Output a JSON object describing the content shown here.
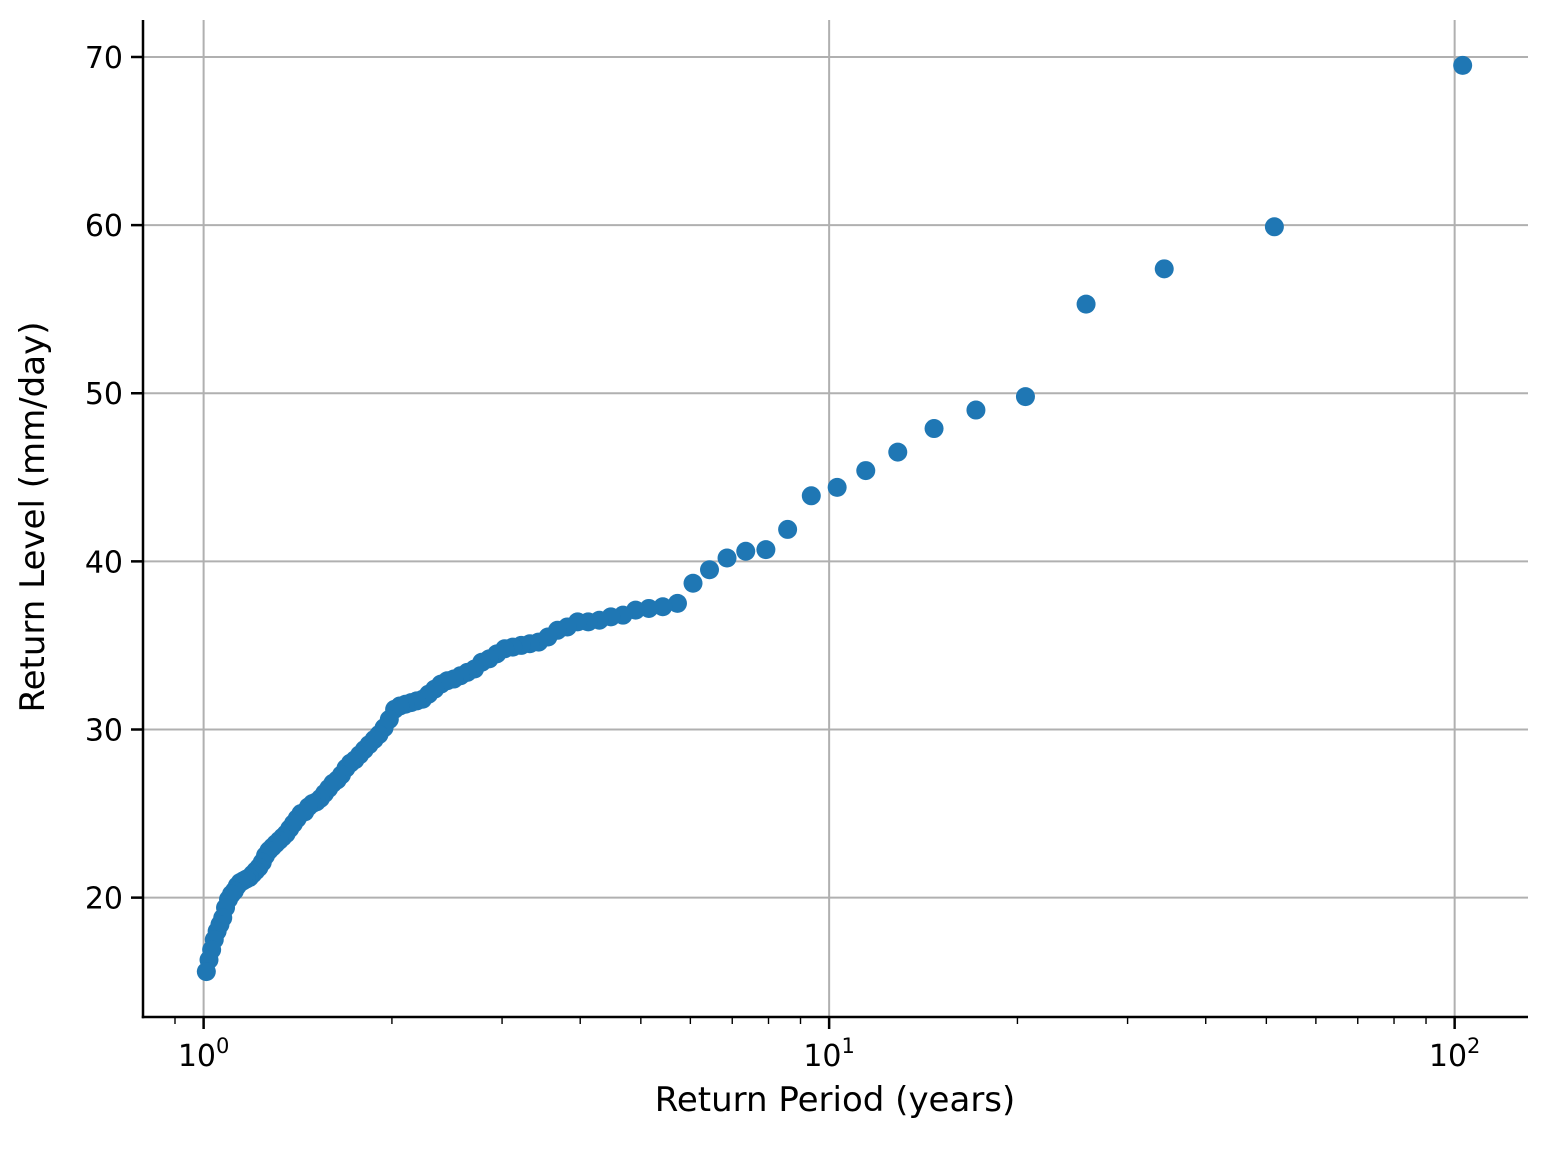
{
  "figure": {
    "background": "#ffffff"
  },
  "chart_data": {
    "type": "scatter",
    "title": "",
    "xlabel": "Return Period (years)",
    "ylabel": "Return Level (mm/day)",
    "x_scale": "log",
    "grid": true,
    "legend_position": "none",
    "marker_color": "#1f77b4",
    "grid_color": "#b0b0b0",
    "axis_color": "#000000",
    "xlim": [
      0.8,
      131
    ],
    "ylim": [
      12.9,
      72.2
    ],
    "x_major_ticks": [
      {
        "value": 1,
        "base": "10",
        "exp": "0"
      },
      {
        "value": 10,
        "base": "10",
        "exp": "1"
      },
      {
        "value": 100,
        "base": "10",
        "exp": "2"
      }
    ],
    "x_minor_ticks": [
      0.9,
      2,
      3,
      4,
      5,
      6,
      7,
      8,
      9,
      20,
      30,
      40,
      50,
      60,
      70,
      80,
      90
    ],
    "y_ticks": [
      20,
      30,
      40,
      50,
      60,
      70
    ],
    "points": [
      [
        103.0,
        69.5
      ],
      [
        51.5,
        59.9
      ],
      [
        34.333,
        57.4
      ],
      [
        25.75,
        55.3
      ],
      [
        20.6,
        49.8
      ],
      [
        17.167,
        49.0
      ],
      [
        14.714,
        47.9
      ],
      [
        12.875,
        46.5
      ],
      [
        11.444,
        45.4
      ],
      [
        10.3,
        44.4
      ],
      [
        9.364,
        43.9
      ],
      [
        8.583,
        41.9
      ],
      [
        7.923,
        40.7
      ],
      [
        7.357,
        40.6
      ],
      [
        6.867,
        40.2
      ],
      [
        6.438,
        39.5
      ],
      [
        6.059,
        38.7
      ],
      [
        5.722,
        37.5
      ],
      [
        5.421,
        37.3
      ],
      [
        5.15,
        37.2
      ],
      [
        4.905,
        37.1
      ],
      [
        4.682,
        36.8
      ],
      [
        4.478,
        36.7
      ],
      [
        4.292,
        36.5
      ],
      [
        4.12,
        36.4
      ],
      [
        3.962,
        36.4
      ],
      [
        3.815,
        36.1
      ],
      [
        3.679,
        35.9
      ],
      [
        3.552,
        35.5
      ],
      [
        3.433,
        35.2
      ],
      [
        3.323,
        35.1
      ],
      [
        3.219,
        35.0
      ],
      [
        3.121,
        34.9
      ],
      [
        3.029,
        34.8
      ],
      [
        2.943,
        34.5
      ],
      [
        2.861,
        34.2
      ],
      [
        2.784,
        34.0
      ],
      [
        2.711,
        33.6
      ],
      [
        2.641,
        33.4
      ],
      [
        2.575,
        33.2
      ],
      [
        2.512,
        33.0
      ],
      [
        2.452,
        32.9
      ],
      [
        2.395,
        32.7
      ],
      [
        2.341,
        32.4
      ],
      [
        2.289,
        32.1
      ],
      [
        2.239,
        31.8
      ],
      [
        2.191,
        31.7
      ],
      [
        2.146,
        31.6
      ],
      [
        2.102,
        31.5
      ],
      [
        2.06,
        31.4
      ],
      [
        2.02,
        31.2
      ],
      [
        1.981,
        30.6
      ],
      [
        1.943,
        30.1
      ],
      [
        1.907,
        29.7
      ],
      [
        1.873,
        29.4
      ],
      [
        1.839,
        29.1
      ],
      [
        1.807,
        28.8
      ],
      [
        1.776,
        28.5
      ],
      [
        1.746,
        28.2
      ],
      [
        1.717,
        28.0
      ],
      [
        1.689,
        27.7
      ],
      [
        1.661,
        27.3
      ],
      [
        1.635,
        27.0
      ],
      [
        1.609,
        26.8
      ],
      [
        1.585,
        26.5
      ],
      [
        1.561,
        26.2
      ],
      [
        1.537,
        25.9
      ],
      [
        1.515,
        25.7
      ],
      [
        1.493,
        25.6
      ],
      [
        1.471,
        25.4
      ],
      [
        1.451,
        25.1
      ],
      [
        1.431,
        25.0
      ],
      [
        1.411,
        24.7
      ],
      [
        1.392,
        24.4
      ],
      [
        1.373,
        24.1
      ],
      [
        1.355,
        23.8
      ],
      [
        1.338,
        23.6
      ],
      [
        1.321,
        23.4
      ],
      [
        1.304,
        23.2
      ],
      [
        1.288,
        23.0
      ],
      [
        1.272,
        22.8
      ],
      [
        1.256,
        22.5
      ],
      [
        1.241,
        22.1
      ],
      [
        1.226,
        21.8
      ],
      [
        1.212,
        21.6
      ],
      [
        1.198,
        21.4
      ],
      [
        1.184,
        21.2
      ],
      [
        1.17,
        21.1
      ],
      [
        1.157,
        21.0
      ],
      [
        1.144,
        20.9
      ],
      [
        1.132,
        20.7
      ],
      [
        1.12,
        20.4
      ],
      [
        1.108,
        20.2
      ],
      [
        1.096,
        19.9
      ],
      [
        1.084,
        19.4
      ],
      [
        1.073,
        18.8
      ],
      [
        1.062,
        18.4
      ],
      [
        1.051,
        18.0
      ],
      [
        1.04,
        17.5
      ],
      [
        1.03,
        16.9
      ],
      [
        1.02,
        16.3
      ],
      [
        1.01,
        15.6
      ]
    ]
  }
}
